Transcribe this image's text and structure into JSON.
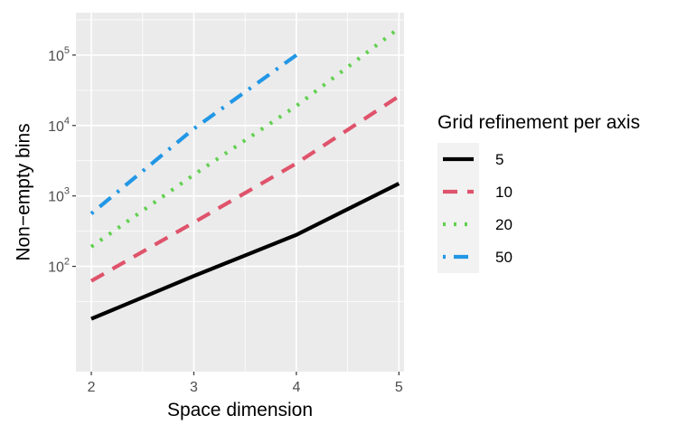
{
  "chart_data": {
    "type": "line",
    "xlabel": "Space dimension",
    "ylabel": "Non−empty bins",
    "x": [
      2,
      3,
      4,
      5
    ],
    "xlim": [
      1.85,
      5.05
    ],
    "x_ticks": [
      2,
      3,
      4,
      5
    ],
    "y_scale": "log10",
    "ylim": [
      3.2,
      400000
    ],
    "y_ticks": [
      {
        "value": 100,
        "base": "10",
        "exp": "2"
      },
      {
        "value": 1000,
        "base": "10",
        "exp": "3"
      },
      {
        "value": 10000,
        "base": "10",
        "exp": "4"
      },
      {
        "value": 100000,
        "base": "10",
        "exp": "5"
      }
    ],
    "grid": true,
    "panel_background": "#ebebeb",
    "legend": {
      "title": "Grid refinement per axis",
      "position": "right"
    },
    "series": [
      {
        "name": "5",
        "color": "#000000",
        "dash": "solid",
        "values": [
          [
            2,
            18
          ],
          [
            3,
            73
          ],
          [
            4,
            280
          ],
          [
            5,
            1500
          ]
        ]
      },
      {
        "name": "10",
        "color": "#df536b",
        "dash": "dashed",
        "values": [
          [
            2,
            62
          ],
          [
            3,
            420
          ],
          [
            4,
            2900
          ],
          [
            5,
            26000
          ]
        ]
      },
      {
        "name": "20",
        "color": "#61d04f",
        "dash": "dotted",
        "values": [
          [
            2,
            190
          ],
          [
            3,
            2000
          ],
          [
            4,
            19000
          ],
          [
            5,
            240000
          ]
        ]
      },
      {
        "name": "50",
        "color": "#2297e6",
        "dash": "dotdash",
        "values": [
          [
            2,
            560
          ],
          [
            3,
            9000
          ],
          [
            4,
            100000
          ]
        ]
      }
    ]
  }
}
